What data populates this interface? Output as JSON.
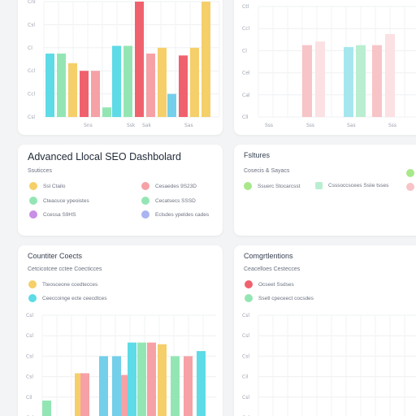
{
  "colors": {
    "cyan": "#5ddbe6",
    "green": "#93e6b3",
    "yellow": "#f5cf6a",
    "red": "#f0616e",
    "pink": "#f6a1a6",
    "blue": "#74cfea",
    "purple": "#c98ee6",
    "periwinkle": "#a9b4f2",
    "paleGreen": "#a8e88a",
    "palePink": "#f7c4c7",
    "paleCyan": "#a6e6ee",
    "paleGreen2": "#b9eed1"
  },
  "dashboard": {
    "title": "Advanced Llocal SEO Dashbolard",
    "subtitle": "Ssuticces",
    "legend": [
      {
        "label": "Ssl Ctailo",
        "color": "#f5cf6a"
      },
      {
        "label": "Cesaedes 9S23D",
        "color": "#f6a1a6"
      },
      {
        "label": "Cteacuce  ypeoistes",
        "color": "#93e6b3"
      },
      {
        "label": "Cecatsecs SSSD",
        "color": "#93e6b3"
      },
      {
        "label": "Ccessa  S9HS",
        "color": "#c98ee6"
      },
      {
        "label": "Eclsdes  ypeldes cades",
        "color": "#a9b4f2"
      }
    ]
  },
  "features": {
    "title": "Fsltures",
    "subtitle": "Cosecis & Sayacs",
    "legend": [
      {
        "label": "Ssuerc Stocarcsst",
        "color": "#a8e88a"
      },
      {
        "label": "Csssoccscees Ssiie  tsses",
        "color": "#b9eed1"
      }
    ]
  },
  "competitors": {
    "title": "Countiter Coects",
    "subtitle": "Cetcicotcee cctee Coecticces",
    "legend": [
      {
        "label": "Tteosceone ccedtecces",
        "color": "#f5cf6a"
      },
      {
        "label": "Ceeccoinge  ecte ceecdtces",
        "color": "#5ddbe6"
      }
    ]
  },
  "comparison": {
    "title": "Comgrtlentions",
    "subtitle": "Ceacelloes Cestecces",
    "legend": [
      {
        "label": "Ocseet  Ssdses",
        "color": "#f0616e"
      },
      {
        "label": "Ssetl  cpeceect  cocsdes",
        "color": "#93e6b3"
      }
    ]
  },
  "chart_data": [
    {
      "type": "bar",
      "panel": "top-left",
      "ylim": [
        0,
        6
      ],
      "tick_labels": [
        "Cnl",
        "Csl",
        "Cl",
        "Ccl",
        "Ccl",
        "Csl"
      ],
      "x_labels": [
        "Sns",
        "Ssk",
        "Sak",
        "Sas"
      ],
      "grid": true,
      "bars": [
        {
          "color": "#5ddbe6",
          "value": 3.3
        },
        {
          "color": "#93e6b3",
          "value": 3.3
        },
        {
          "color": "#f5cf6a",
          "value": 2.8
        },
        {
          "color": "#f0616e",
          "value": 2.4
        },
        {
          "color": "#f6a1a6",
          "value": 2.4
        },
        {
          "color": "#93e6b3",
          "value": 0.5
        },
        {
          "color": "#5ddbe6",
          "value": 3.7
        },
        {
          "color": "#93e6b3",
          "value": 3.7
        },
        {
          "color": "#f0616e",
          "value": 6.0
        },
        {
          "color": "#f6a1a6",
          "value": 3.3
        },
        {
          "color": "#f5cf6a",
          "value": 3.6
        },
        {
          "color": "#74cfea",
          "value": 1.2
        },
        {
          "color": "#f0616e",
          "value": 3.2
        },
        {
          "color": "#f5cf6a",
          "value": 3.6
        },
        {
          "color": "#f5cf6a",
          "value": 6.0
        }
      ]
    },
    {
      "type": "bar",
      "panel": "top-right",
      "ylim": [
        0,
        6
      ],
      "tick_labels": [
        "Ctl",
        "Ccl",
        "Cl",
        "Cel",
        "Cal",
        "Cll"
      ],
      "x_labels": [
        "Sss",
        "Sss",
        "Sas",
        "Sss"
      ],
      "grid": true,
      "bars": [
        {
          "color": "#f7c4c7",
          "value": 3.9
        },
        {
          "color": "#fbe1e3",
          "value": 4.1
        },
        {
          "color": "#a6e6ee",
          "value": 3.8
        },
        {
          "color": "#b9eed1",
          "value": 3.9
        },
        {
          "color": "#f7c4c7",
          "value": 3.9
        },
        {
          "color": "#fbe1e3",
          "value": 4.5
        }
      ]
    },
    {
      "type": "bar",
      "panel": "bottom-left",
      "ylim": [
        0,
        6
      ],
      "tick_labels": [
        "Csl",
        "Csl",
        "Csl",
        "Csl",
        "Cil",
        "Csl"
      ],
      "x_labels": [],
      "grid": true,
      "bars": [
        {
          "color": "#93e6b3",
          "value": 1.0
        },
        {
          "color": "#f5cf6a",
          "value": 2.6
        },
        {
          "color": "#f6a1a6",
          "value": 2.6
        },
        {
          "color": "#74cfea",
          "value": 3.6
        },
        {
          "color": "#74cfea",
          "value": 3.6
        },
        {
          "color": "#f6a1a6",
          "value": 2.5
        },
        {
          "color": "#5ddbe6",
          "value": 4.4
        },
        {
          "color": "#93e6b3",
          "value": 4.4
        },
        {
          "color": "#f6a1a6",
          "value": 4.4
        },
        {
          "color": "#f5cf6a",
          "value": 4.3
        },
        {
          "color": "#93e6b3",
          "value": 3.6
        },
        {
          "color": "#f6a1a6",
          "value": 3.6
        },
        {
          "color": "#5ddbe6",
          "value": 3.9
        }
      ]
    },
    {
      "type": "bar",
      "panel": "bottom-right",
      "ylim": [
        0,
        6
      ],
      "tick_labels": [
        "Csl",
        "Csl",
        "Csl",
        "Cil",
        "Csl",
        "Cel"
      ],
      "x_labels": [],
      "grid": true,
      "bars": []
    }
  ]
}
